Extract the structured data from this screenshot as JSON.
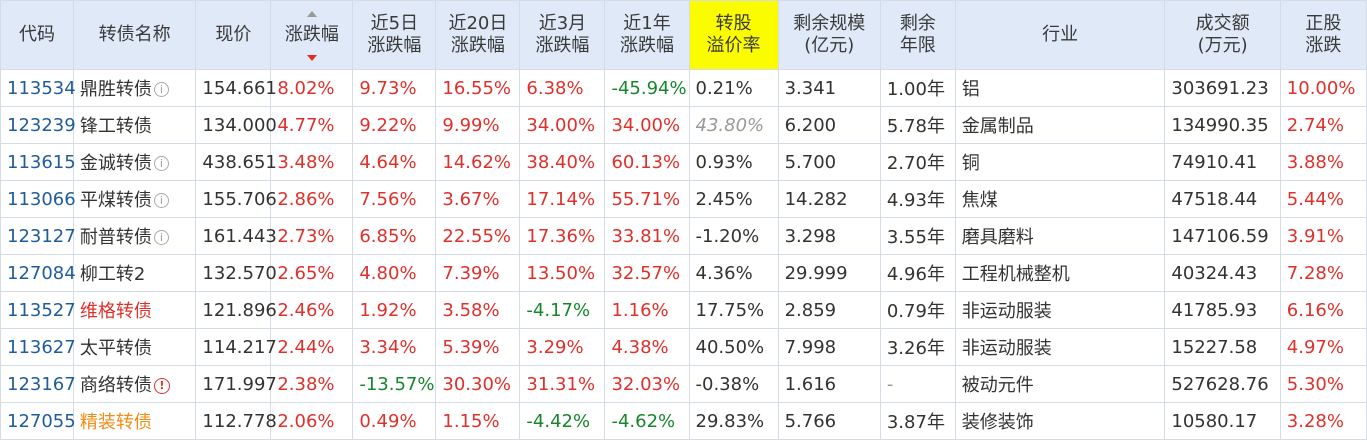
{
  "headers": {
    "code": "代码",
    "name": "转债名称",
    "price": "现价",
    "chg": "涨跌幅",
    "chg5_a": "近5日",
    "chg5_b": "涨跌幅",
    "chg20_a": "近20日",
    "chg20_b": "涨跌幅",
    "chg3m_a": "近3月",
    "chg3m_b": "涨跌幅",
    "chg1y_a": "近1年",
    "chg1y_b": "涨跌幅",
    "prem_a": "转股",
    "prem_b": "溢价率",
    "scale_a": "剩余规模",
    "scale_b": "(亿元)",
    "term_a": "剩余",
    "term_b": "年限",
    "industry": "行业",
    "volume_a": "成交额",
    "volume_b": "(万元)",
    "stock_a": "正股",
    "stock_b": "涨跌"
  },
  "colors": {
    "up": "#e0302a",
    "down": "#17862a",
    "highlight": "#fcfc00",
    "header_bg": "#dfe9f7",
    "code": "#1f5c9e"
  },
  "rows": [
    {
      "code": "113534",
      "name": "鼎胜转债",
      "icon": "info",
      "price": "154.661",
      "chg": "8.02%",
      "c5": "9.73%",
      "c20": "16.55%",
      "c3m": "6.38%",
      "c1y": "-45.94%",
      "prem": "0.21%",
      "scale": "3.341",
      "term": "1.00年",
      "industry": "铝",
      "volume": "303691.23",
      "stock": "10.00%"
    },
    {
      "code": "123239",
      "name": "锋工转债",
      "icon": "",
      "price": "134.000",
      "chg": "4.77%",
      "c5": "9.22%",
      "c20": "9.99%",
      "c3m": "34.00%",
      "c1y": "34.00%",
      "prem": "43.80%",
      "scale": "6.200",
      "term": "5.78年",
      "industry": "金属制品",
      "volume": "134990.35",
      "stock": "2.74%"
    },
    {
      "code": "113615",
      "name": "金诚转债",
      "icon": "info",
      "price": "438.651",
      "chg": "3.48%",
      "c5": "4.64%",
      "c20": "14.62%",
      "c3m": "38.40%",
      "c1y": "60.13%",
      "prem": "0.93%",
      "scale": "5.700",
      "term": "2.70年",
      "industry": "铜",
      "volume": "74910.41",
      "stock": "3.88%"
    },
    {
      "code": "113066",
      "name": "平煤转债",
      "icon": "info",
      "price": "155.706",
      "chg": "2.86%",
      "c5": "7.56%",
      "c20": "3.67%",
      "c3m": "17.14%",
      "c1y": "55.71%",
      "prem": "2.45%",
      "scale": "14.282",
      "term": "4.93年",
      "industry": "焦煤",
      "volume": "47518.44",
      "stock": "5.44%"
    },
    {
      "code": "123127",
      "name": "耐普转债",
      "icon": "info",
      "price": "161.443",
      "chg": "2.73%",
      "c5": "6.85%",
      "c20": "22.55%",
      "c3m": "17.36%",
      "c1y": "33.81%",
      "prem": "-1.20%",
      "scale": "3.298",
      "term": "3.55年",
      "industry": "磨具磨料",
      "volume": "147106.59",
      "stock": "3.91%"
    },
    {
      "code": "127084",
      "name": "柳工转2",
      "icon": "",
      "price": "132.570",
      "chg": "2.65%",
      "c5": "4.80%",
      "c20": "7.39%",
      "c3m": "13.50%",
      "c1y": "32.57%",
      "prem": "4.36%",
      "scale": "29.999",
      "term": "4.96年",
      "industry": "工程机械整机",
      "volume": "40324.43",
      "stock": "7.28%"
    },
    {
      "code": "113527",
      "name": "维格转债",
      "icon": "",
      "price": "121.896",
      "chg": "2.46%",
      "c5": "1.92%",
      "c20": "3.58%",
      "c3m": "-4.17%",
      "c1y": "1.16%",
      "prem": "17.75%",
      "scale": "2.859",
      "term": "0.79年",
      "industry": "非运动服装",
      "volume": "41785.93",
      "stock": "6.16%"
    },
    {
      "code": "113627",
      "name": "太平转债",
      "icon": "",
      "price": "114.217",
      "chg": "2.44%",
      "c5": "3.34%",
      "c20": "5.39%",
      "c3m": "3.29%",
      "c1y": "4.38%",
      "prem": "40.50%",
      "scale": "7.998",
      "term": "3.26年",
      "industry": "非运动服装",
      "volume": "15227.58",
      "stock": "4.97%"
    },
    {
      "code": "123167",
      "name": "商络转债",
      "icon": "warn",
      "price": "171.997",
      "chg": "2.38%",
      "c5": "-13.57%",
      "c20": "30.30%",
      "c3m": "31.31%",
      "c1y": "32.03%",
      "prem": "-0.38%",
      "scale": "1.616",
      "term": "-",
      "industry": "被动元件",
      "volume": "527628.76",
      "stock": "5.30%"
    },
    {
      "code": "127055",
      "name": "精装转债",
      "icon": "",
      "price": "112.778",
      "chg": "2.06%",
      "c5": "0.49%",
      "c20": "1.15%",
      "c3m": "-4.42%",
      "c1y": "-4.62%",
      "prem": "29.83%",
      "scale": "5.766",
      "term": "3.87年",
      "industry": "装修装饰",
      "volume": "10580.17",
      "stock": "3.28%"
    }
  ]
}
